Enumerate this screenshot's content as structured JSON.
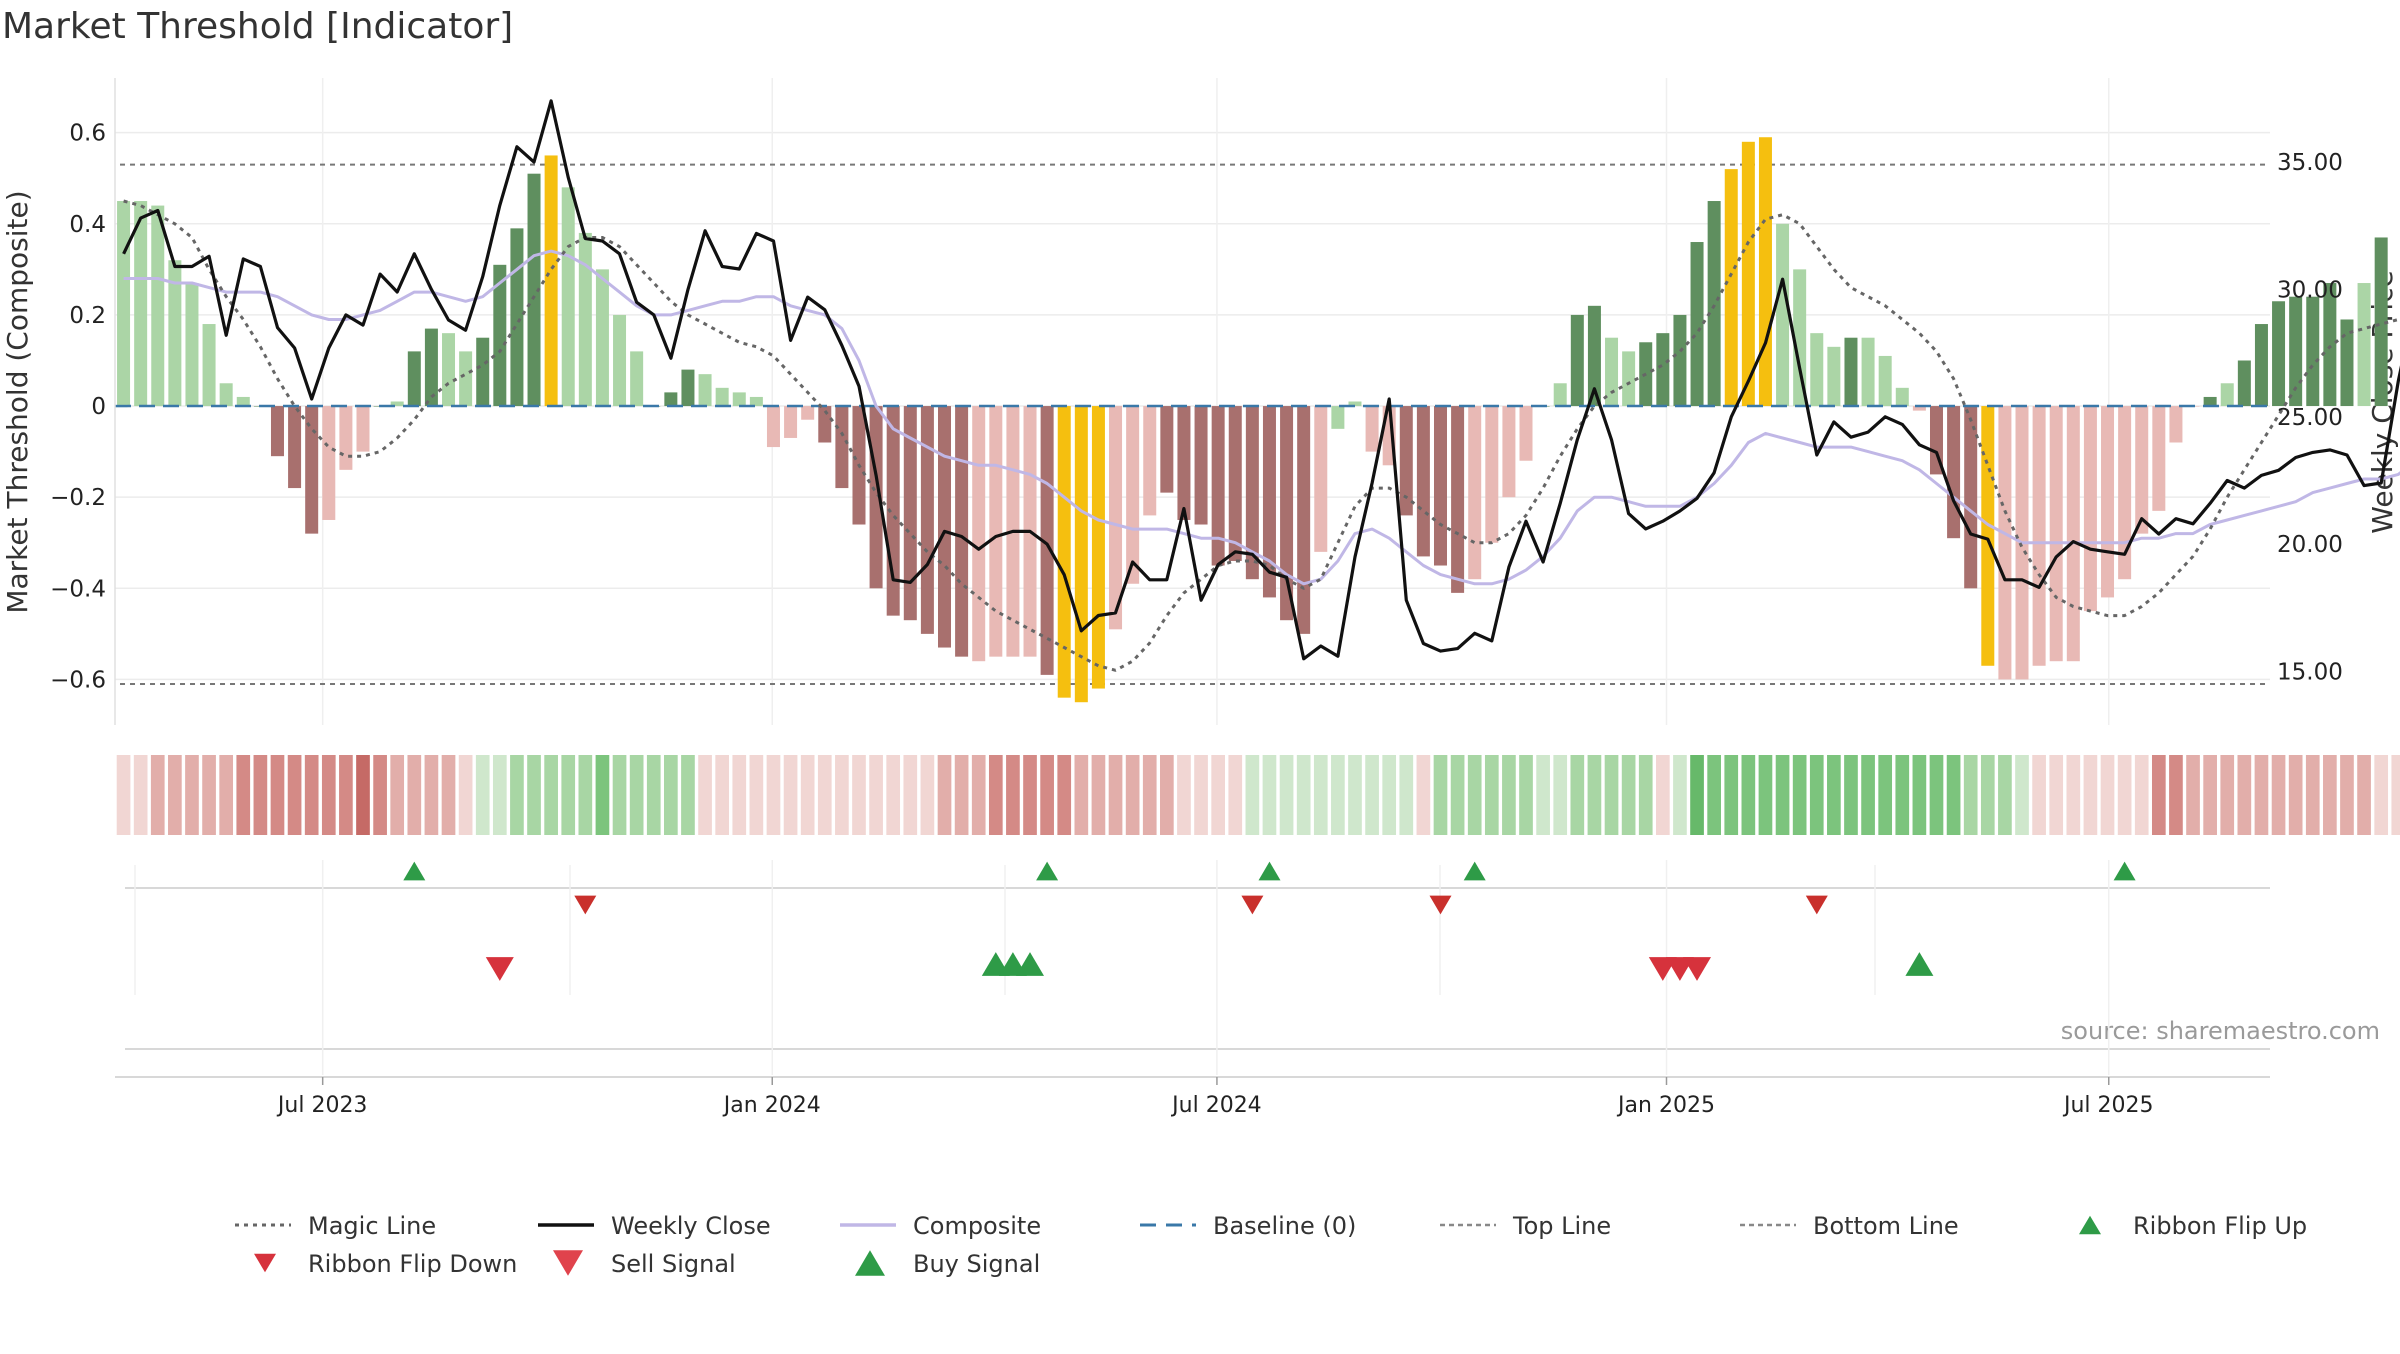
{
  "title": "Market Threshold [Indicator]",
  "source": "source: sharemaestro.com",
  "colors": {
    "strong_up": "#5f8f5f",
    "weak_up": "#abd5a6",
    "strong_down": "#a8706e",
    "weak_down": "#e8b9b5",
    "extreme": "#f5bf0f",
    "close": "#111111",
    "composite": "#c0b7e6",
    "magic": "#666666",
    "baseline": "#3a78a8",
    "threshold": "#777777",
    "buy": "#2e9b47",
    "sell": "#d6323c"
  },
  "chart_data": {
    "type": "bar",
    "title": "Market Threshold [Indicator]",
    "ylabel": "Market Threshold (Composite)",
    "y2label": "Weekly Close Price",
    "ylim": [
      -0.7,
      0.72
    ],
    "y2lim": [
      12.9,
      38.3
    ],
    "yticks": [
      0.6,
      0.4,
      0.2,
      0,
      -0.2,
      -0.4,
      -0.6
    ],
    "ytick_labels": [
      "0.6",
      "0.4",
      "0.2",
      "0",
      "−0.2",
      "−0.4",
      "−0.6"
    ],
    "y2ticks": [
      35,
      30,
      25,
      20,
      15
    ],
    "y2tick_labels": [
      "35.00",
      "30.00",
      "25.00",
      "20.00",
      "15.00"
    ],
    "top_line": 0.53,
    "bottom_line": -0.61,
    "baseline": 0,
    "x_range": [
      "2023-04-07",
      "2025-09-05"
    ],
    "x_ticks": [
      {
        "label": "Jul 2023",
        "date": "2023-07-01"
      },
      {
        "label": "Jan 2024",
        "date": "2024-01-01"
      },
      {
        "label": "Jul 2024",
        "date": "2024-07-01"
      },
      {
        "label": "Jan 2025",
        "date": "2025-01-01"
      },
      {
        "label": "Jul 2025",
        "date": "2025-07-01"
      }
    ],
    "first_week": "2023-04-07",
    "composite_bars": [
      0.45,
      0.45,
      0.44,
      0.32,
      0.27,
      0.18,
      0.05,
      0.02,
      0,
      -0.11,
      -0.18,
      -0.28,
      -0.25,
      -0.14,
      -0.1,
      0,
      0.01,
      0.12,
      0.17,
      0.16,
      0.12,
      0.15,
      0.31,
      0.39,
      0.51,
      0.55,
      0.48,
      0.38,
      0.3,
      0.2,
      0.12,
      0,
      0.03,
      0.08,
      0.07,
      0.04,
      0.03,
      0.02,
      -0.09,
      -0.07,
      -0.03,
      -0.08,
      -0.18,
      -0.26,
      -0.4,
      -0.46,
      -0.47,
      -0.5,
      -0.53,
      -0.55,
      -0.56,
      -0.55,
      -0.55,
      -0.55,
      -0.59,
      -0.64,
      -0.65,
      -0.62,
      -0.49,
      -0.39,
      -0.24,
      -0.19,
      -0.25,
      -0.26,
      -0.35,
      -0.34,
      -0.38,
      -0.42,
      -0.47,
      -0.5,
      -0.32,
      -0.05,
      0.01,
      -0.1,
      -0.13,
      -0.24,
      -0.33,
      -0.35,
      -0.41,
      -0.38,
      -0.3,
      -0.2,
      -0.12,
      0,
      0.05,
      0.2,
      0.22,
      0.15,
      0.12,
      0.14,
      0.16,
      0.2,
      0.36,
      0.45,
      0.52,
      0.58,
      0.59,
      0.4,
      0.3,
      0.16,
      0.13,
      0.15,
      0.15,
      0.11,
      0.04,
      -0.01,
      -0.15,
      -0.29,
      -0.4,
      -0.57,
      -0.6,
      -0.6,
      -0.57,
      -0.56,
      -0.56,
      -0.45,
      -0.42,
      -0.38,
      -0.28,
      -0.23,
      -0.08,
      0,
      0.02,
      0.05,
      0.1,
      0.18,
      0.23,
      0.24,
      0.24,
      0.27,
      0.19,
      0.27,
      0.37
    ],
    "bar_style": [
      "wu",
      "wu",
      "wu",
      "wu",
      "wu",
      "wu",
      "wu",
      "wu",
      "su",
      "sd",
      "sd",
      "sd",
      "wd",
      "wd",
      "wd",
      "su",
      "wu",
      "su",
      "su",
      "wu",
      "wu",
      "su",
      "su",
      "su",
      "su",
      "ex",
      "wu",
      "wu",
      "wu",
      "wu",
      "wu",
      "su",
      "su",
      "su",
      "wu",
      "wu",
      "wu",
      "wu",
      "wd",
      "wd",
      "wd",
      "sd",
      "sd",
      "sd",
      "sd",
      "sd",
      "sd",
      "sd",
      "sd",
      "sd",
      "wd",
      "wd",
      "wd",
      "wd",
      "sd",
      "ex",
      "ex",
      "ex",
      "wd",
      "wd",
      "wd",
      "sd",
      "sd",
      "sd",
      "sd",
      "sd",
      "sd",
      "sd",
      "sd",
      "sd",
      "wd",
      "wu",
      "wu",
      "wd",
      "wd",
      "sd",
      "sd",
      "sd",
      "sd",
      "wd",
      "wd",
      "wd",
      "wd",
      "su",
      "wu",
      "su",
      "su",
      "wu",
      "wu",
      "su",
      "su",
      "su",
      "su",
      "su",
      "ex",
      "ex",
      "ex",
      "wu",
      "wu",
      "wu",
      "wu",
      "su",
      "wu",
      "wu",
      "wu",
      "wd",
      "sd",
      "sd",
      "sd",
      "ex",
      "wd",
      "wd",
      "wd",
      "wd",
      "wd",
      "wd",
      "wd",
      "wd",
      "wd",
      "wd",
      "wd",
      "wd",
      "su",
      "wu",
      "su",
      "su",
      "su",
      "su",
      "su",
      "su",
      "su",
      "wu",
      "su",
      "su"
    ],
    "series": [
      {
        "name": "Weekly Close",
        "values": [
          31.4,
          32.8,
          33.1,
          30.9,
          30.9,
          31.3,
          28.2,
          31.2,
          30.9,
          28.5,
          27.7,
          25.7,
          27.7,
          29.0,
          28.6,
          30.6,
          29.9,
          31.4,
          30.0,
          28.8,
          28.4,
          30.5,
          33.3,
          35.6,
          35.0,
          37.4,
          34.4,
          32.0,
          31.9,
          31.4,
          29.5,
          29.0,
          27.3,
          30.0,
          32.3,
          30.9,
          30.8,
          32.2,
          31.9,
          28.0,
          29.7,
          29.2,
          27.8,
          26.2,
          22.7,
          18.6,
          18.5,
          19.2,
          20.5,
          20.3,
          19.8,
          20.3,
          20.5,
          20.5,
          20.0,
          18.8,
          16.6,
          17.2,
          17.3,
          19.3,
          18.6,
          18.6,
          21.4,
          17.8,
          19.2,
          19.7,
          19.6,
          18.9,
          18.7,
          15.5,
          16.0,
          15.6,
          19.5,
          22.4,
          25.7,
          17.8,
          16.1,
          15.8,
          15.9,
          16.5,
          16.2,
          19.1,
          20.9,
          19.3,
          21.6,
          24.1,
          26.1,
          24.1,
          21.2,
          20.6,
          20.9,
          21.3,
          21.8,
          22.8,
          25.0,
          26.4,
          27.9,
          30.4,
          26.9,
          23.5,
          24.8,
          24.2,
          24.4,
          25.0,
          24.7,
          23.9,
          23.6,
          21.7,
          20.4,
          20.2,
          18.6,
          18.6,
          18.3,
          19.5,
          20.1,
          19.8,
          19.7,
          19.6,
          21.0,
          20.4,
          21.0,
          20.8,
          21.6,
          22.5,
          22.2,
          22.7,
          22.9,
          23.4,
          23.6,
          23.7,
          23.5,
          22.3,
          22.4,
          26.4,
          29.6
        ]
      },
      {
        "name": "Composite",
        "values": [
          0.28,
          0.28,
          0.28,
          0.27,
          0.27,
          0.26,
          0.25,
          0.25,
          0.25,
          0.24,
          0.22,
          0.2,
          0.19,
          0.19,
          0.2,
          0.21,
          0.23,
          0.25,
          0.25,
          0.24,
          0.23,
          0.24,
          0.27,
          0.3,
          0.33,
          0.34,
          0.33,
          0.31,
          0.28,
          0.25,
          0.22,
          0.2,
          0.2,
          0.21,
          0.22,
          0.23,
          0.23,
          0.24,
          0.24,
          0.22,
          0.21,
          0.2,
          0.17,
          0.1,
          0,
          -0.05,
          -0.07,
          -0.09,
          -0.11,
          -0.12,
          -0.13,
          -0.13,
          -0.14,
          -0.15,
          -0.17,
          -0.2,
          -0.23,
          -0.25,
          -0.26,
          -0.27,
          -0.27,
          -0.27,
          -0.28,
          -0.29,
          -0.29,
          -0.3,
          -0.32,
          -0.34,
          -0.37,
          -0.39,
          -0.38,
          -0.34,
          -0.28,
          -0.27,
          -0.29,
          -0.32,
          -0.35,
          -0.37,
          -0.38,
          -0.39,
          -0.39,
          -0.38,
          -0.36,
          -0.33,
          -0.29,
          -0.23,
          -0.2,
          -0.2,
          -0.21,
          -0.22,
          -0.22,
          -0.22,
          -0.2,
          -0.17,
          -0.13,
          -0.08,
          -0.06,
          -0.07,
          -0.08,
          -0.09,
          -0.09,
          -0.09,
          -0.1,
          -0.11,
          -0.12,
          -0.14,
          -0.17,
          -0.2,
          -0.23,
          -0.26,
          -0.28,
          -0.3,
          -0.3,
          -0.3,
          -0.3,
          -0.3,
          -0.3,
          -0.3,
          -0.29,
          -0.29,
          -0.28,
          -0.28,
          -0.26,
          -0.25,
          -0.24,
          -0.23,
          -0.22,
          -0.21,
          -0.19,
          -0.18,
          -0.17,
          -0.16,
          -0.16,
          -0.15,
          -0.12
        ]
      },
      {
        "name": "Magic Line",
        "values": [
          0.45,
          0.44,
          0.42,
          0.4,
          0.37,
          0.3,
          0.24,
          0.19,
          0.13,
          0.06,
          0,
          -0.05,
          -0.09,
          -0.11,
          -0.11,
          -0.1,
          -0.07,
          -0.03,
          0.02,
          0.05,
          0.07,
          0.09,
          0.12,
          0.18,
          0.24,
          0.3,
          0.35,
          0.37,
          0.37,
          0.35,
          0.31,
          0.27,
          0.23,
          0.2,
          0.18,
          0.16,
          0.14,
          0.13,
          0.11,
          0.07,
          0.03,
          -0.01,
          -0.06,
          -0.13,
          -0.19,
          -0.24,
          -0.28,
          -0.32,
          -0.35,
          -0.39,
          -0.42,
          -0.45,
          -0.47,
          -0.49,
          -0.51,
          -0.53,
          -0.55,
          -0.57,
          -0.58,
          -0.56,
          -0.52,
          -0.46,
          -0.41,
          -0.38,
          -0.35,
          -0.34,
          -0.34,
          -0.35,
          -0.38,
          -0.4,
          -0.38,
          -0.3,
          -0.22,
          -0.18,
          -0.18,
          -0.2,
          -0.23,
          -0.26,
          -0.28,
          -0.3,
          -0.3,
          -0.28,
          -0.24,
          -0.18,
          -0.11,
          -0.05,
          0,
          0.03,
          0.05,
          0.07,
          0.09,
          0.12,
          0.16,
          0.22,
          0.29,
          0.36,
          0.41,
          0.42,
          0.4,
          0.35,
          0.3,
          0.26,
          0.24,
          0.22,
          0.19,
          0.16,
          0.12,
          0.06,
          -0.03,
          -0.13,
          -0.23,
          -0.31,
          -0.37,
          -0.42,
          -0.44,
          -0.45,
          -0.46,
          -0.46,
          -0.44,
          -0.41,
          -0.37,
          -0.33,
          -0.27,
          -0.2,
          -0.14,
          -0.08,
          -0.02,
          0.04,
          0.09,
          0.13,
          0.16,
          0.17,
          0.18,
          0.19,
          0.21
        ]
      }
    ],
    "ribbon": [
      "wd",
      "wd",
      "md",
      "md",
      "md",
      "md",
      "md",
      "sd",
      "sd",
      "sd",
      "sd",
      "sd",
      "sd",
      "sd",
      "xd",
      "sd",
      "md",
      "md",
      "md",
      "md",
      "wd",
      "wu",
      "wu",
      "mu",
      "mu",
      "mu",
      "mu",
      "mu",
      "su",
      "mu",
      "mu",
      "mu",
      "mu",
      "mu",
      "wd",
      "wd",
      "wd",
      "wd",
      "wd",
      "wd",
      "wd",
      "wd",
      "wd",
      "wd",
      "wd",
      "wd",
      "wd",
      "wd",
      "md",
      "md",
      "md",
      "sd",
      "sd",
      "sd",
      "sd",
      "sd",
      "md",
      "md",
      "md",
      "md",
      "md",
      "md",
      "wd",
      "wd",
      "wd",
      "wd",
      "wu",
      "wu",
      "wu",
      "wu",
      "wu",
      "wu",
      "wu",
      "wu",
      "wu",
      "wu",
      "wd",
      "mu",
      "mu",
      "mu",
      "mu",
      "mu",
      "mu",
      "wu",
      "wu",
      "mu",
      "mu",
      "mu",
      "mu",
      "mu",
      "wd",
      "wu",
      "xu",
      "su",
      "su",
      "su",
      "su",
      "su",
      "su",
      "su",
      "su",
      "su",
      "su",
      "su",
      "su",
      "su",
      "su",
      "su",
      "mu",
      "mu",
      "mu",
      "wu",
      "wd",
      "wd",
      "wd",
      "wd",
      "wd",
      "wd",
      "wd",
      "sd",
      "sd",
      "md",
      "md",
      "md",
      "md",
      "md",
      "md",
      "md",
      "md",
      "md",
      "md",
      "md",
      "wd",
      "wd",
      "wd",
      "wd",
      "wd",
      "mu",
      "mu",
      "mu",
      "mu",
      "mu",
      "mu",
      "mu",
      "mu",
      "mu",
      "mu",
      "mu",
      "mu",
      "mu"
    ],
    "ribbon_flip_up": [
      "2023-08-04",
      "2024-04-19",
      "2024-07-19",
      "2024-10-11",
      "2025-07-04"
    ],
    "ribbon_flip_down": [
      "2023-10-13",
      "2024-07-12",
      "2024-09-27",
      "2025-02-28"
    ],
    "sell_signal": [
      "2023-09-08",
      "2024-12-27",
      "2025-01-03",
      "2025-01-10"
    ],
    "buy_signal": [
      "2024-03-29",
      "2024-04-05",
      "2024-04-12",
      "2025-04-11"
    ],
    "legend": [
      {
        "label": "Magic Line",
        "kind": "dotted",
        "color": "#666666"
      },
      {
        "label": "Weekly Close",
        "kind": "solid",
        "color": "#111111"
      },
      {
        "label": "Composite",
        "kind": "solid",
        "color": "#c0b7e6"
      },
      {
        "label": "Baseline (0)",
        "kind": "dashed",
        "color": "#3a78a8"
      },
      {
        "label": "Top Line",
        "kind": "finedash",
        "color": "#888888"
      },
      {
        "label": "Bottom Line",
        "kind": "finedash",
        "color": "#888888"
      },
      {
        "label": "Ribbon Flip Up",
        "kind": "triangle-up",
        "color": "#2e9b47"
      },
      {
        "label": "Ribbon Flip Down",
        "kind": "triangle-down",
        "color": "#d6323c"
      },
      {
        "label": "Sell Signal",
        "kind": "triangle-down-big",
        "color": "#e0434c"
      },
      {
        "label": "Buy Signal",
        "kind": "triangle-up-big",
        "color": "#2e9b47"
      }
    ],
    "legend_placement": "bottom"
  }
}
